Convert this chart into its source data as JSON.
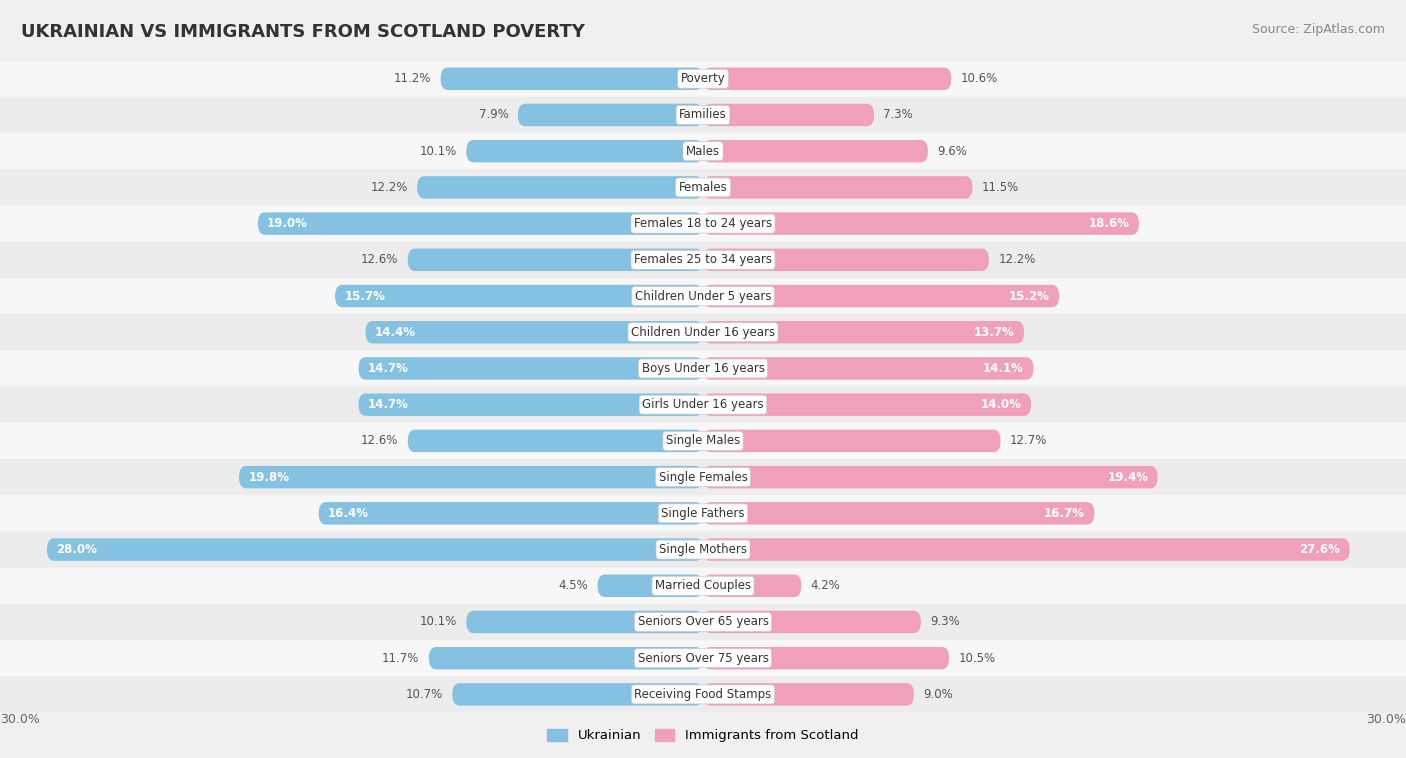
{
  "title": "UKRAINIAN VS IMMIGRANTS FROM SCOTLAND POVERTY",
  "source": "Source: ZipAtlas.com",
  "categories": [
    "Poverty",
    "Families",
    "Males",
    "Females",
    "Females 18 to 24 years",
    "Females 25 to 34 years",
    "Children Under 5 years",
    "Children Under 16 years",
    "Boys Under 16 years",
    "Girls Under 16 years",
    "Single Males",
    "Single Females",
    "Single Fathers",
    "Single Mothers",
    "Married Couples",
    "Seniors Over 65 years",
    "Seniors Over 75 years",
    "Receiving Food Stamps"
  ],
  "ukrainian": [
    11.2,
    7.9,
    10.1,
    12.2,
    19.0,
    12.6,
    15.7,
    14.4,
    14.7,
    14.7,
    12.6,
    19.8,
    16.4,
    28.0,
    4.5,
    10.1,
    11.7,
    10.7
  ],
  "scotland": [
    10.6,
    7.3,
    9.6,
    11.5,
    18.6,
    12.2,
    15.2,
    13.7,
    14.1,
    14.0,
    12.7,
    19.4,
    16.7,
    27.6,
    4.2,
    9.3,
    10.5,
    9.0
  ],
  "max_val": 30.0,
  "blue_color": "#85C1E0",
  "pink_color": "#F0A0BA",
  "blue_label": "Ukrainian",
  "pink_label": "Immigrants from Scotland",
  "row_colors": [
    "#f7f7f7",
    "#ececec"
  ],
  "title_color": "#333333",
  "source_color": "#888888",
  "label_dark_color": "#555555",
  "label_white_color": "#ffffff",
  "white_label_threshold": 13.5
}
